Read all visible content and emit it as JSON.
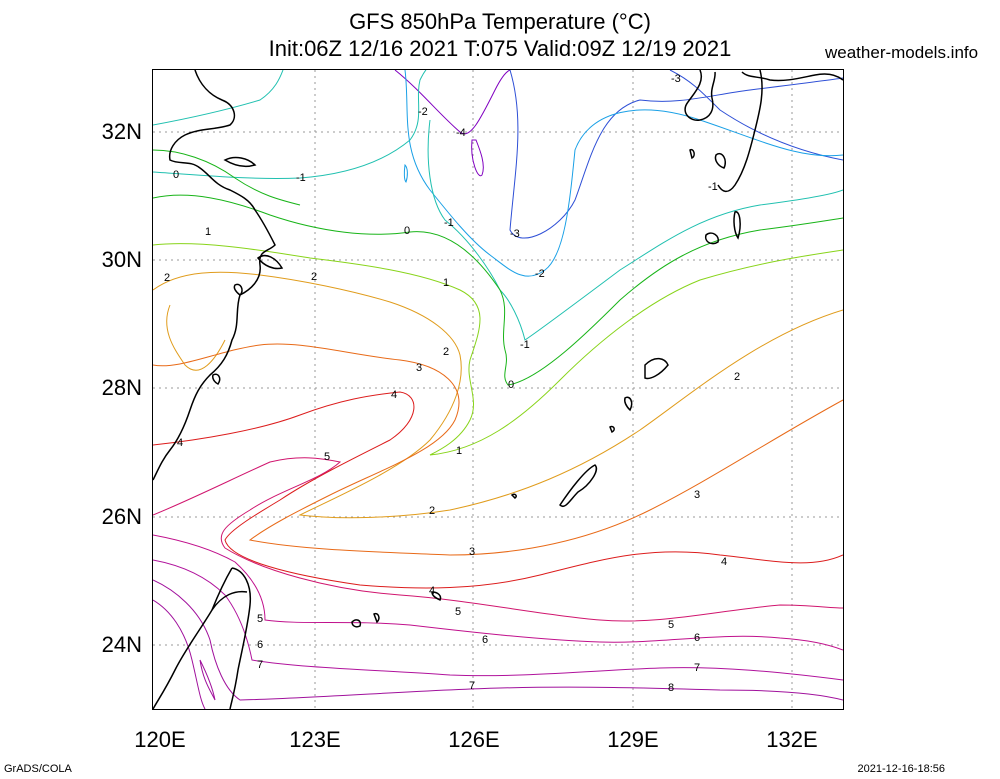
{
  "title_line1": "GFS 850hPa Temperature (°C)",
  "title_line2": "Init:06Z 12/16 2021 T:075 Valid:09Z 12/19 2021",
  "site": "weather-models.info",
  "x_ticks": [
    "120E",
    "123E",
    "126E",
    "129E",
    "132E"
  ],
  "y_ticks": [
    "32N",
    "30N",
    "28N",
    "26N",
    "24N"
  ],
  "footer_left": "GrADS/COLA",
  "footer_right": "2021-12-16-18:56",
  "contour_colors": {
    "-4": "#8000c0",
    "-3": "#2e4fd6",
    "-2": "#1aa0e6",
    "-1": "#20c0b0",
    "0": "#18b418",
    "1": "#88d41a",
    "2": "#e09c1c",
    "3": "#e86a18",
    "4": "#dc1c1c",
    "5": "#d0156e",
    "6": "#c0108c",
    "7": "#b0129c",
    "8": "#a0109c"
  },
  "contour_labels": [
    "-4",
    "-3",
    "-2",
    "-1",
    "0",
    "1",
    "2",
    "3",
    "4",
    "5",
    "6",
    "7",
    "8"
  ]
}
